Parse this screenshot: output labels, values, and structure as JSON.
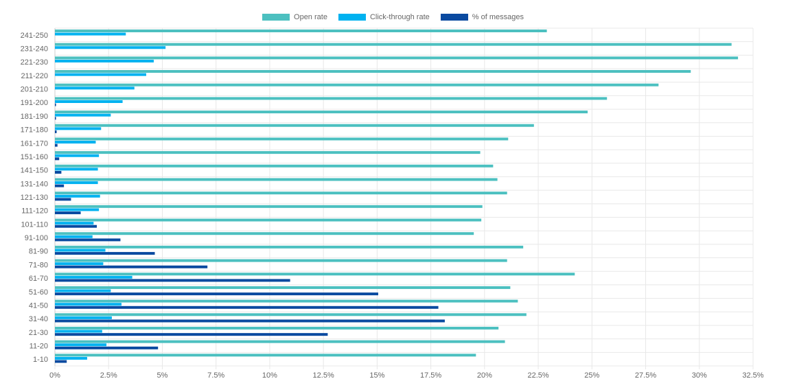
{
  "chart_data": {
    "type": "bar",
    "orientation": "horizontal",
    "title": "",
    "xlabel": "",
    "ylabel": "",
    "xlim": [
      0,
      32.5
    ],
    "x_ticks": [
      "0%",
      "2.5%",
      "5%",
      "7.5%",
      "10%",
      "12.5%",
      "15%",
      "17.5%",
      "20%",
      "22.5%",
      "25%",
      "27.5%",
      "30%",
      "32.5%"
    ],
    "grid": true,
    "legend_position": "top-center",
    "categories": [
      "241-250",
      "231-240",
      "221-230",
      "211-220",
      "201-210",
      "191-200",
      "181-190",
      "171-180",
      "161-170",
      "151-160",
      "141-150",
      "131-140",
      "121-130",
      "111-120",
      "101-110",
      "91-100",
      "81-90",
      "71-80",
      "61-70",
      "51-60",
      "41-50",
      "31-40",
      "21-30",
      "11-20",
      "1-10"
    ],
    "series": [
      {
        "name": "Open rate",
        "color": "#4cc0c0",
        "values": [
          22.9,
          31.5,
          31.8,
          29.6,
          28.1,
          25.7,
          24.8,
          22.3,
          21.1,
          19.8,
          20.4,
          20.6,
          21.05,
          19.9,
          19.85,
          19.5,
          21.8,
          21.05,
          24.2,
          21.2,
          21.55,
          21.95,
          20.65,
          20.95,
          19.6
        ]
      },
      {
        "name": "Click-through rate",
        "color": "#00b2f0",
        "values": [
          3.3,
          5.15,
          4.6,
          4.25,
          3.7,
          3.15,
          2.6,
          2.15,
          1.9,
          2.05,
          2.0,
          2.0,
          2.1,
          2.05,
          1.8,
          1.75,
          2.35,
          2.25,
          3.6,
          2.6,
          3.1,
          2.65,
          2.2,
          2.4,
          1.5
        ]
      },
      {
        "name": "% of messages",
        "color": "#0a4aa0",
        "values": [
          0.0,
          0.0,
          0.0,
          0.0,
          0.0,
          0.05,
          0.05,
          0.08,
          0.12,
          0.2,
          0.3,
          0.42,
          0.75,
          1.2,
          1.95,
          3.05,
          4.65,
          7.1,
          10.95,
          15.05,
          17.85,
          18.15,
          12.7,
          4.8,
          0.55
        ]
      }
    ]
  }
}
